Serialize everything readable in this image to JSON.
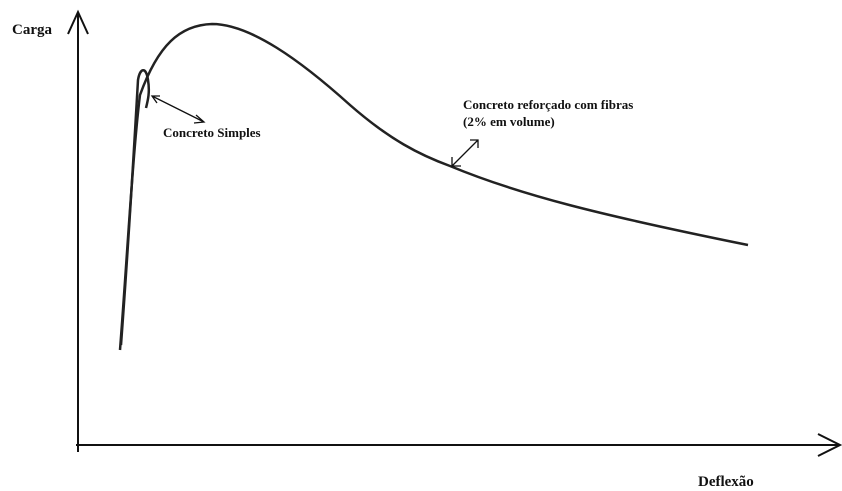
{
  "axes": {
    "y_label": "Carga",
    "x_label": "Deflexão"
  },
  "annotations": [
    {
      "lines": [
        "Concreto Simples"
      ]
    },
    {
      "lines": [
        "Concreto reforçado com fibras",
        "(2% em volume)"
      ]
    }
  ]
}
